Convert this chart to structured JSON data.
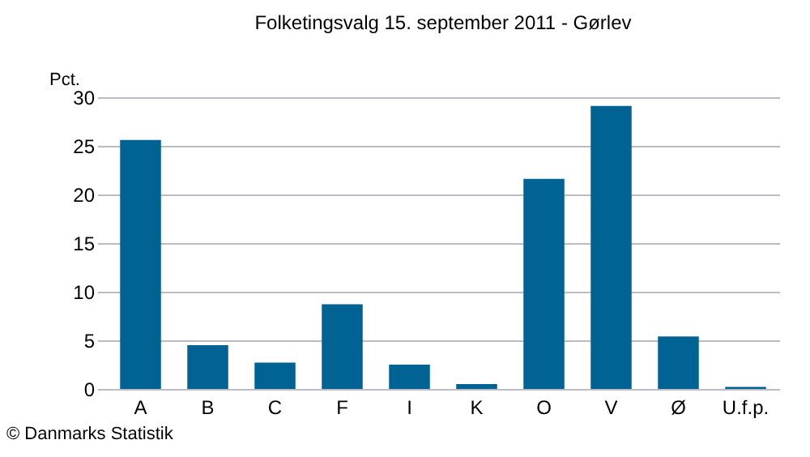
{
  "chart_data": {
    "type": "bar",
    "title": "Folketingsvalg 15. september 2011 - Gørlev",
    "ylabel": "Pct.",
    "categories": [
      "A",
      "B",
      "C",
      "F",
      "I",
      "K",
      "O",
      "V",
      "Ø",
      "U.f.p."
    ],
    "values": [
      25.6,
      4.5,
      2.7,
      8.7,
      2.5,
      0.5,
      21.6,
      29.1,
      5.4,
      0.2
    ],
    "color": "#006394",
    "ylim": [
      0,
      30
    ],
    "yticks": [
      0,
      5,
      10,
      15,
      20,
      25,
      30
    ],
    "grid": "y",
    "annotations": [
      "© Danmarks Statistik"
    ]
  }
}
